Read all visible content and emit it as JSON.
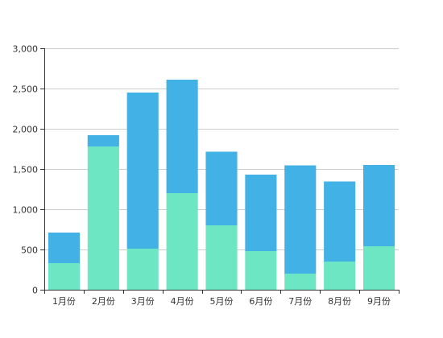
{
  "chart_data": {
    "type": "bar",
    "stacked": true,
    "categories": [
      "1月份",
      "2月份",
      "3月份",
      "4月份",
      "5月份",
      "6月份",
      "7月份",
      "8月份",
      "9月份"
    ],
    "series": [
      {
        "values": [
          330,
          1780,
          510,
          1200,
          800,
          480,
          200,
          350,
          540
        ],
        "color": "#6ce6c3"
      },
      {
        "values": [
          380,
          140,
          1940,
          1410,
          915,
          950,
          1345,
          995,
          1010
        ],
        "color": "#42b1e5"
      }
    ],
    "ylim": [
      0,
      3000
    ],
    "yticks": [
      0,
      500,
      1000,
      1500,
      2000,
      2500,
      3000
    ],
    "ytick_labels": [
      "0",
      "500",
      "1,000",
      "1,500",
      "2,000",
      "2,500",
      "3,000"
    ],
    "grid": true,
    "legend": "none"
  }
}
